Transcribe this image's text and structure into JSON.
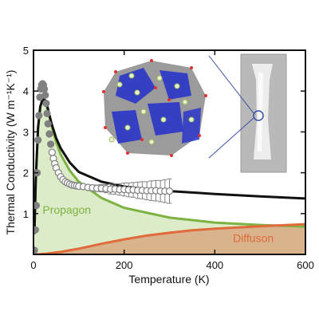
{
  "chart_data": {
    "type": "area",
    "xlabel": "Temperature (K)",
    "ylabel": "Thermal Conductivity (W m⁻¹K⁻¹)",
    "xlim": [
      0,
      600
    ],
    "ylim": [
      0,
      5
    ],
    "xticks": [
      "0",
      "200",
      "400",
      "600"
    ],
    "yticks": [
      "1",
      "2",
      "3",
      "4",
      "5"
    ],
    "grid": false,
    "colors": {
      "total": "#111111",
      "propagon_line": "#7cb342",
      "propagon_fill": "#dcebc8",
      "diffuson_line": "#e06a3a",
      "diffuson_fill": "#d8b38c",
      "experiment": "#808080"
    },
    "series": [
      {
        "name": "Propagon",
        "style": "filled-line",
        "x": [
          2,
          5,
          10,
          15,
          20,
          25,
          30,
          40,
          50,
          60,
          80,
          100,
          150,
          200,
          300,
          400,
          500,
          600
        ],
        "y": [
          0.5,
          1.8,
          3.1,
          3.62,
          3.8,
          3.78,
          3.6,
          3.15,
          2.75,
          2.45,
          2.05,
          1.78,
          1.38,
          1.14,
          0.9,
          0.78,
          0.72,
          0.68
        ]
      },
      {
        "name": "Diffuson",
        "style": "filled-line",
        "x": [
          0,
          10,
          30,
          60,
          100,
          150,
          200,
          250,
          300,
          350,
          400,
          500,
          600
        ],
        "y": [
          0,
          0.0,
          0.02,
          0.06,
          0.14,
          0.26,
          0.37,
          0.46,
          0.53,
          0.59,
          0.63,
          0.69,
          0.74
        ]
      },
      {
        "name": "",
        "style": "line",
        "x": [
          2,
          5,
          10,
          15,
          20,
          25,
          30,
          40,
          50,
          60,
          80,
          100,
          150,
          200,
          250,
          300,
          400,
          500,
          600
        ],
        "y": [
          0.5,
          1.8,
          3.1,
          3.62,
          3.8,
          3.78,
          3.65,
          3.2,
          2.85,
          2.6,
          2.25,
          2.02,
          1.78,
          1.66,
          1.6,
          1.55,
          1.48,
          1.42,
          1.37
        ]
      },
      {
        "name": "",
        "style": "markers",
        "x": [
          2,
          4,
          6,
          8,
          10,
          12,
          14,
          16,
          18,
          20,
          22,
          24,
          26,
          28,
          30,
          32,
          35,
          38,
          41,
          44,
          47,
          50,
          55,
          60,
          65,
          70,
          75,
          80,
          85,
          90,
          95,
          100,
          110,
          120,
          130,
          140,
          150,
          160,
          170,
          180,
          190,
          200,
          210,
          220,
          230,
          240,
          250,
          260,
          270,
          280,
          290,
          300
        ],
        "y": [
          0.1,
          0.6,
          1.2,
          2.0,
          2.8,
          3.4,
          3.85,
          4.05,
          4.15,
          4.18,
          4.15,
          4.05,
          3.9,
          3.7,
          3.45,
          3.2,
          2.95,
          2.7,
          2.5,
          2.35,
          2.22,
          2.12,
          2.0,
          1.9,
          1.83,
          1.78,
          1.75,
          1.72,
          1.7,
          1.69,
          1.68,
          1.67,
          1.66,
          1.64,
          1.63,
          1.62,
          1.62,
          1.61,
          1.6,
          1.6,
          1.59,
          1.59,
          1.58,
          1.58,
          1.57,
          1.57,
          1.56,
          1.56,
          1.56,
          1.55,
          1.55,
          1.55
        ],
        "errors": [
          0,
          0,
          0,
          0,
          0,
          0,
          0,
          0,
          0,
          0,
          0,
          0,
          0,
          0,
          0,
          0,
          0,
          0,
          0,
          0,
          0,
          0,
          0,
          0,
          0,
          0,
          0,
          0,
          0,
          0,
          0,
          0.02,
          0.03,
          0.05,
          0.06,
          0.08,
          0.09,
          0.1,
          0.12,
          0.13,
          0.14,
          0.16,
          0.17,
          0.18,
          0.2,
          0.21,
          0.22,
          0.24,
          0.25,
          0.26,
          0.28,
          0.3
        ]
      }
    ],
    "annotations": [
      {
        "text": "Propagon",
        "x": 20,
        "y": 1.0,
        "color": "#7cb342"
      },
      {
        "text": "Diffuson",
        "x": 440,
        "y": 0.3,
        "color": "#e06a3a"
      }
    ],
    "insets": [
      "crystal-structure-image",
      "sample-photo"
    ]
  }
}
